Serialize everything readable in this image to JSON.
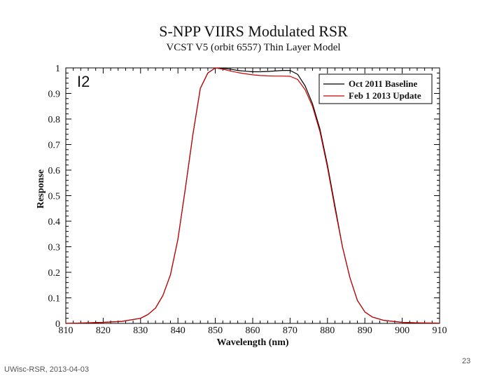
{
  "chart_data": {
    "type": "line",
    "title": "S-NPP VIIRS Modulated RSR",
    "subtitle": "VCST V5 (orbit 6557) Thin Layer Model",
    "band_label": "I2",
    "xlabel": "Wavelength (nm)",
    "ylabel": "Response",
    "xlim": [
      810,
      910
    ],
    "ylim": [
      0,
      1
    ],
    "xticks": [
      810,
      820,
      830,
      840,
      850,
      860,
      870,
      880,
      890,
      900,
      910
    ],
    "yticks": [
      0,
      0.1,
      0.2,
      0.3,
      0.4,
      0.5,
      0.6,
      0.7,
      0.8,
      0.9,
      1
    ],
    "legend_position": "top-right",
    "series": [
      {
        "name": "Oct 2011 Baseline",
        "color": "#000000",
        "x": [
          810,
          815,
          820,
          825,
          830,
          832,
          834,
          836,
          838,
          840,
          842,
          844,
          846,
          848,
          850,
          852,
          854,
          856,
          858,
          860,
          862,
          864,
          866,
          868,
          870,
          872,
          874,
          876,
          878,
          880,
          882,
          884,
          886,
          888,
          890,
          892,
          895,
          900,
          905,
          910
        ],
        "y": [
          0,
          0.002,
          0.004,
          0.008,
          0.02,
          0.035,
          0.06,
          0.11,
          0.19,
          0.33,
          0.53,
          0.74,
          0.92,
          0.98,
          1.0,
          0.998,
          0.995,
          0.99,
          0.987,
          0.985,
          0.985,
          0.986,
          0.988,
          0.99,
          0.99,
          0.975,
          0.93,
          0.86,
          0.76,
          0.62,
          0.46,
          0.3,
          0.18,
          0.09,
          0.045,
          0.025,
          0.012,
          0.004,
          0.002,
          0.001
        ]
      },
      {
        "name": "Feb 1 2013 Update",
        "color": "#cc0000",
        "x": [
          810,
          815,
          820,
          825,
          830,
          832,
          834,
          836,
          838,
          840,
          842,
          844,
          846,
          848,
          850,
          852,
          854,
          856,
          858,
          860,
          862,
          864,
          866,
          868,
          870,
          872,
          874,
          876,
          878,
          880,
          882,
          884,
          886,
          888,
          890,
          892,
          895,
          900,
          905,
          910
        ],
        "y": [
          0,
          0.002,
          0.004,
          0.008,
          0.02,
          0.035,
          0.06,
          0.11,
          0.19,
          0.33,
          0.53,
          0.74,
          0.92,
          0.98,
          1.0,
          0.995,
          0.988,
          0.982,
          0.977,
          0.973,
          0.97,
          0.969,
          0.968,
          0.968,
          0.967,
          0.955,
          0.915,
          0.85,
          0.75,
          0.61,
          0.45,
          0.3,
          0.18,
          0.09,
          0.045,
          0.025,
          0.012,
          0.004,
          0.002,
          0.001
        ]
      }
    ]
  },
  "footer": {
    "source": "UWisc-RSR, 2013-04-03",
    "page_number": "23"
  }
}
